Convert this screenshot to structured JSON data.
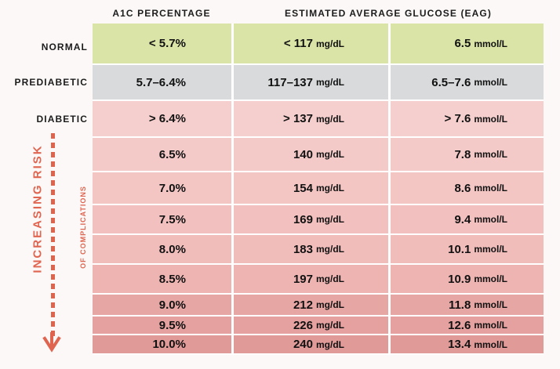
{
  "headers": {
    "a1c": "A1C PERCENTAGE",
    "eag": "ESTIMATED AVERAGE GLUCOSE (EAG)"
  },
  "labels": {
    "normal": "NORMAL",
    "prediabetic": "PREDIABETIC",
    "diabetic": "DIABETIC"
  },
  "risk": {
    "main": "INCREASING RISK",
    "sub": "OF COMPLICATIONS"
  },
  "rows": [
    {
      "a1c": "< 5.7%",
      "mgdl_value": "< 117",
      "mgdl_unit": "mg/dL",
      "mmol_value": "6.5",
      "mmol_unit": "mmol/L"
    },
    {
      "a1c": "5.7–6.4%",
      "mgdl_value": "117–137",
      "mgdl_unit": "mg/dL",
      "mmol_value": "6.5–7.6",
      "mmol_unit": "mmol/L"
    },
    {
      "a1c": "> 6.4%",
      "mgdl_value": "> 137",
      "mgdl_unit": "mg/dL",
      "mmol_value": "> 7.6",
      "mmol_unit": "mmol/L"
    },
    {
      "a1c": "6.5%",
      "mgdl_value": "140",
      "mgdl_unit": "mg/dL",
      "mmol_value": "7.8",
      "mmol_unit": "mmol/L"
    },
    {
      "a1c": "7.0%",
      "mgdl_value": "154",
      "mgdl_unit": "mg/dL",
      "mmol_value": "8.6",
      "mmol_unit": "mmol/L"
    },
    {
      "a1c": "7.5%",
      "mgdl_value": "169",
      "mgdl_unit": "mg/dL",
      "mmol_value": "9.4",
      "mmol_unit": "mmol/L"
    },
    {
      "a1c": "8.0%",
      "mgdl_value": "183",
      "mgdl_unit": "mg/dL",
      "mmol_value": "10.1",
      "mmol_unit": "mmol/L"
    },
    {
      "a1c": "8.5%",
      "mgdl_value": "197",
      "mgdl_unit": "mg/dL",
      "mmol_value": "10.9",
      "mmol_unit": "mmol/L"
    },
    {
      "a1c": "9.0%",
      "mgdl_value": "212",
      "mgdl_unit": "mg/dL",
      "mmol_value": "11.8",
      "mmol_unit": "mmol/L"
    },
    {
      "a1c": "9.5%",
      "mgdl_value": "226",
      "mgdl_unit": "mg/dL",
      "mmol_value": "12.6",
      "mmol_unit": "mmol/L"
    },
    {
      "a1c": "10.0%",
      "mgdl_value": "240",
      "mgdl_unit": "mg/dL",
      "mmol_value": "13.4",
      "mmol_unit": "mmol/L"
    }
  ],
  "colors": {
    "normal": "#d9e4a6",
    "prediabetic": "#d8dadc",
    "diabetic_light": "#f3c6c4",
    "diabetic_mid": "#eeb4b2",
    "diabetic_dark": "#e09a98",
    "accent": "#e06550"
  },
  "icons": {
    "risk_arrow": "down-arrow-icon"
  }
}
